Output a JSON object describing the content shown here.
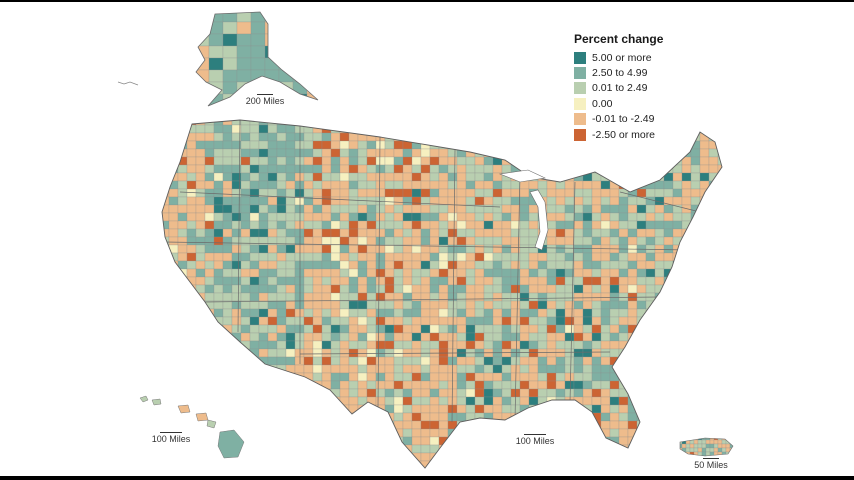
{
  "legend": {
    "title": "Percent change",
    "items": [
      {
        "label": "5.00 or more",
        "color": "#2d7f7e"
      },
      {
        "label": "2.50 to 4.99",
        "color": "#7fb0a3"
      },
      {
        "label": "0.01 to 2.49",
        "color": "#b9cfb0"
      },
      {
        "label": "0.00",
        "color": "#f6f0c0"
      },
      {
        "label": "-0.01 to -2.49",
        "color": "#eebc8c"
      },
      {
        "label": "-2.50 or more",
        "color": "#cc6433"
      }
    ]
  },
  "scales": {
    "alaska": "200 Miles",
    "hawaii": "100 Miles",
    "conus": "100 Miles",
    "puerto_rico": "50 Miles"
  }
}
